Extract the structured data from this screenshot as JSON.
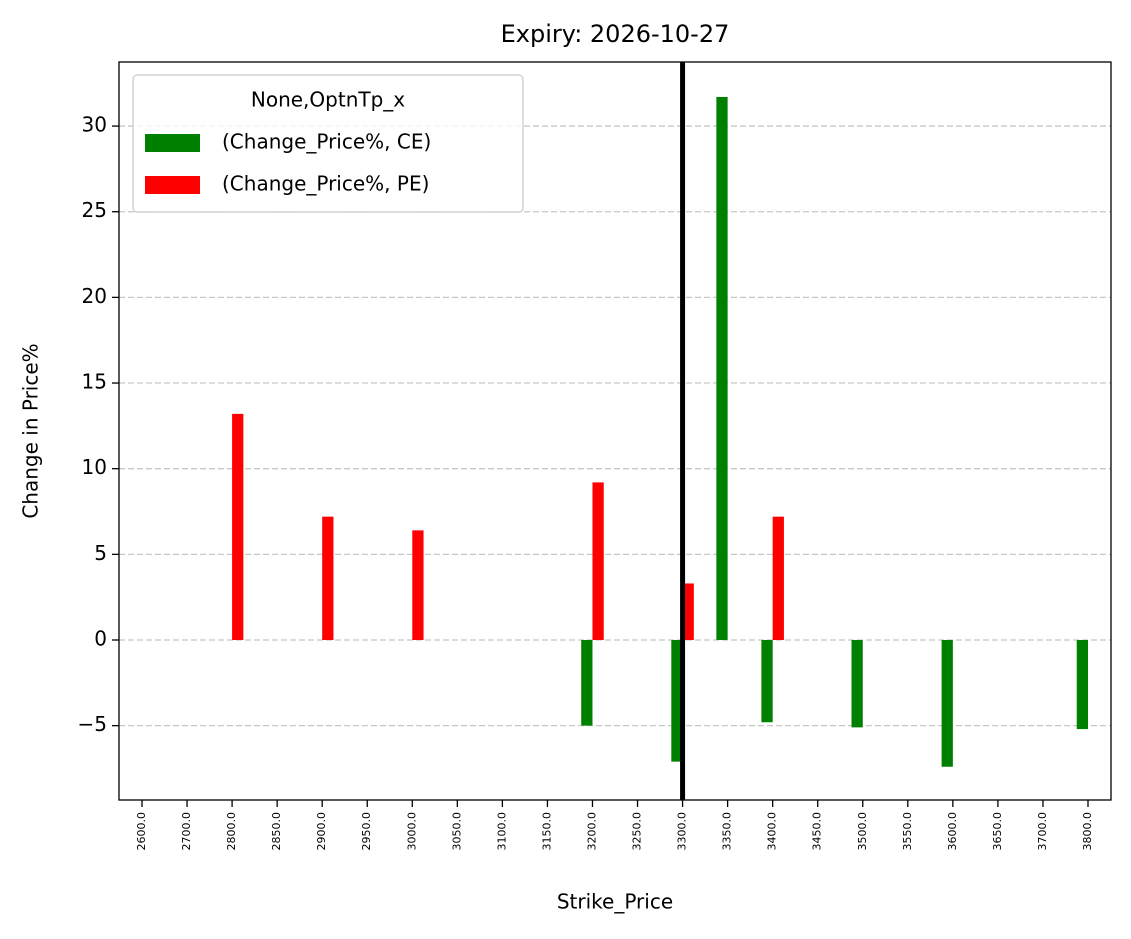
{
  "chart_data": {
    "type": "bar",
    "title": "Expiry: 2026-10-27",
    "x_label": "Strike_Price",
    "y_label": "Change in Price%",
    "categories": [
      "2600.0",
      "2700.0",
      "2800.0",
      "2850.0",
      "2900.0",
      "2950.0",
      "3000.0",
      "3050.0",
      "3100.0",
      "3150.0",
      "3200.0",
      "3250.0",
      "3300.0",
      "3350.0",
      "3400.0",
      "3450.0",
      "3500.0",
      "3550.0",
      "3600.0",
      "3650.0",
      "3700.0",
      "3800.0"
    ],
    "series": [
      {
        "name": "(Change_Price%, CE)",
        "color": "#008000",
        "values": [
          null,
          null,
          null,
          null,
          null,
          null,
          null,
          null,
          null,
          null,
          -5.0,
          null,
          -7.1,
          31.7,
          -4.8,
          null,
          -5.1,
          null,
          -7.4,
          null,
          null,
          -5.2
        ]
      },
      {
        "name": "(Change_Price%, PE)",
        "color": "#ff0000",
        "values": [
          null,
          null,
          13.2,
          null,
          7.2,
          null,
          6.4,
          null,
          null,
          null,
          9.2,
          null,
          3.3,
          null,
          7.2,
          null,
          null,
          null,
          null,
          null,
          null,
          null
        ]
      }
    ],
    "legend_title": "None,OptnTp_x",
    "legend_position": "upper left",
    "vline_at": "3300.0",
    "vline_color": "#000000",
    "ylim": [
      -9.34,
      33.74
    ],
    "yticks": [
      {
        "value": -5,
        "label": "−5"
      },
      0,
      5,
      10,
      15,
      20,
      25,
      30
    ],
    "grid": true
  }
}
